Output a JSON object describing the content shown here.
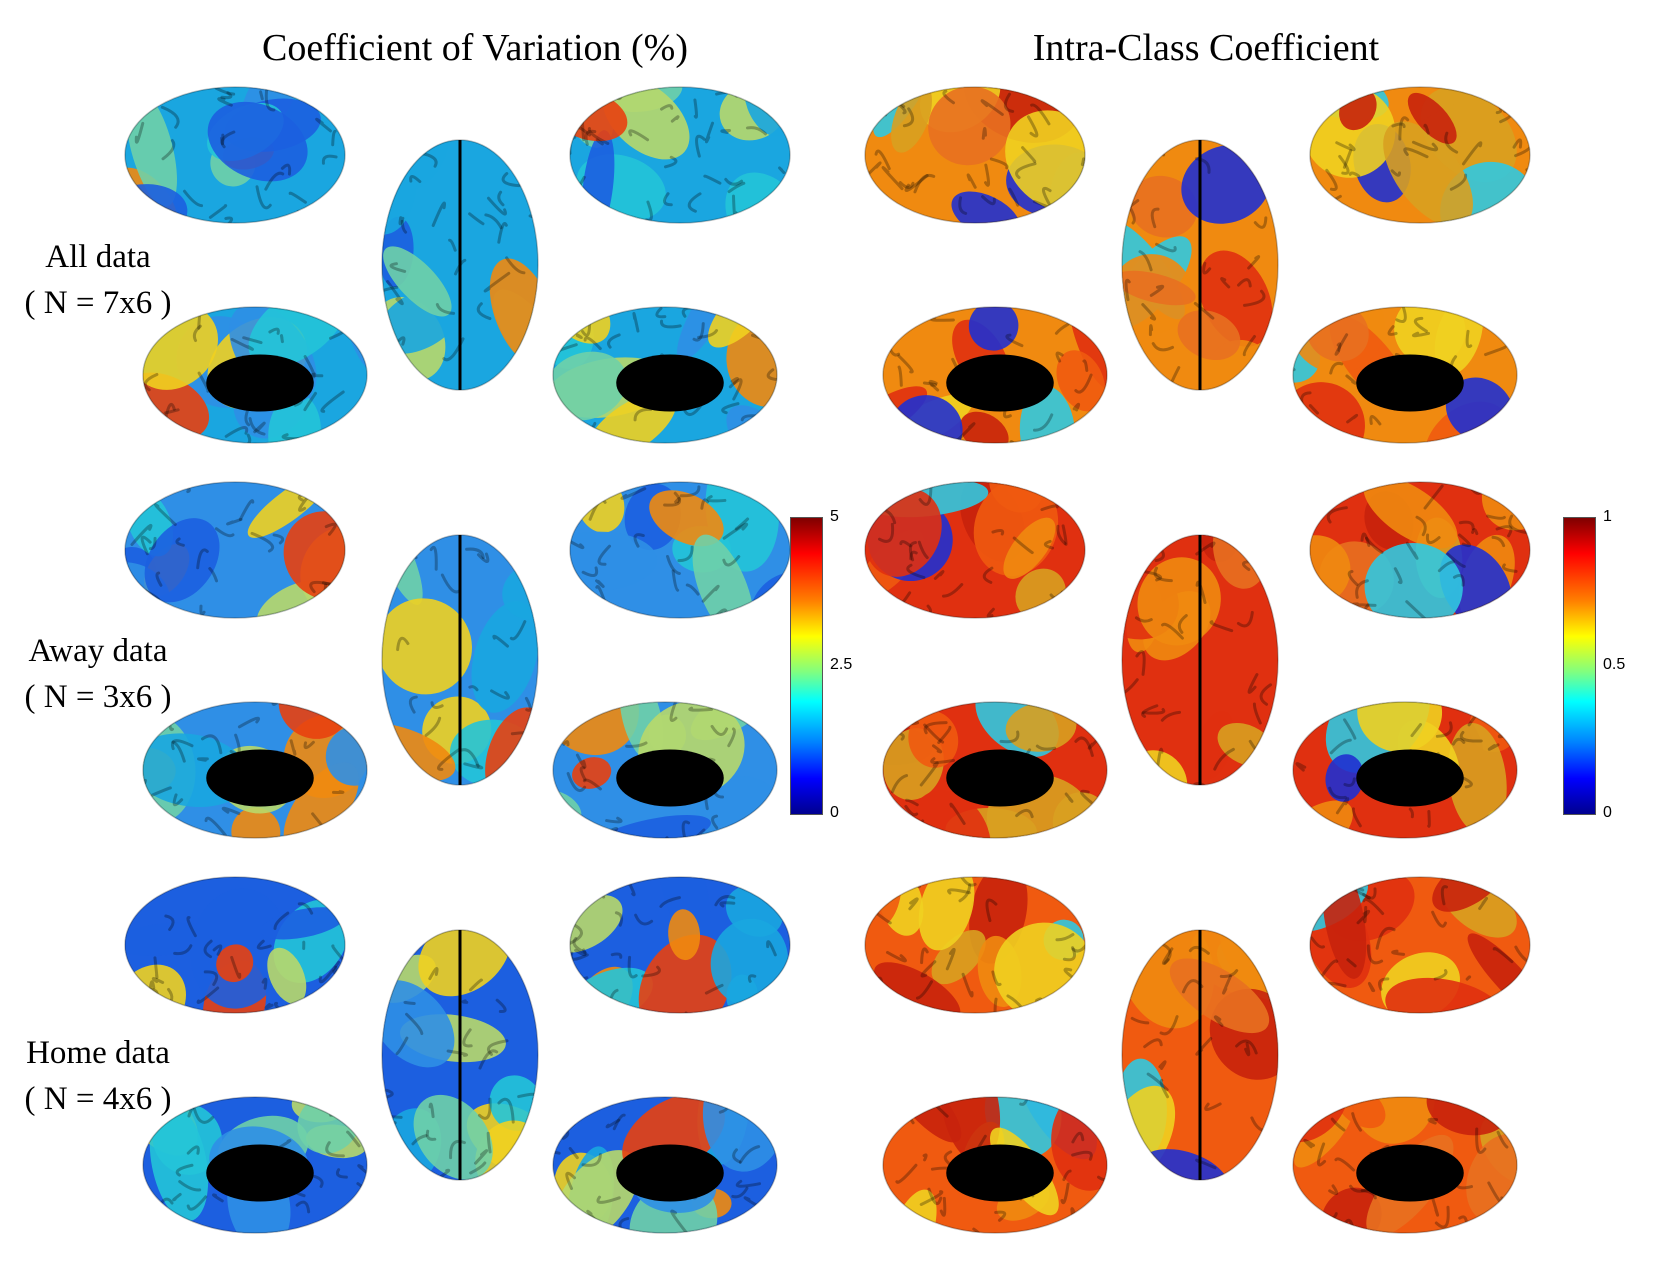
{
  "columns": [
    {
      "title": "Coefficient of Variation (%)",
      "colorbar_ticks": [
        "5",
        "2.5",
        "0"
      ],
      "colorbar_range": [
        0,
        5
      ]
    },
    {
      "title": "Intra-Class Coefficient",
      "colorbar_ticks": [
        "1",
        "0.5",
        "0"
      ],
      "colorbar_range": [
        0,
        1
      ]
    }
  ],
  "rows": [
    {
      "label_line1": "All data",
      "label_line2": "( N = 7x6 )"
    },
    {
      "label_line1": "Away data",
      "label_line2": "( N = 3x6 )"
    },
    {
      "label_line1": "Home data",
      "label_line2": "( N = 4x6 )"
    }
  ],
  "colormap": "jet",
  "colors": {
    "cov_palette": [
      "#1aa6e0",
      "#2f8fe6",
      "#1c5fe0",
      "#23c4d8",
      "#6fd0a8",
      "#b8d86a",
      "#f0d020",
      "#f08a10",
      "#e84010"
    ],
    "icc_palette": [
      "#e03010",
      "#f05a10",
      "#f08a10",
      "#d8a020",
      "#f0d020",
      "#c8220c",
      "#e87020",
      "#30c8e0",
      "#2030d0"
    ]
  }
}
